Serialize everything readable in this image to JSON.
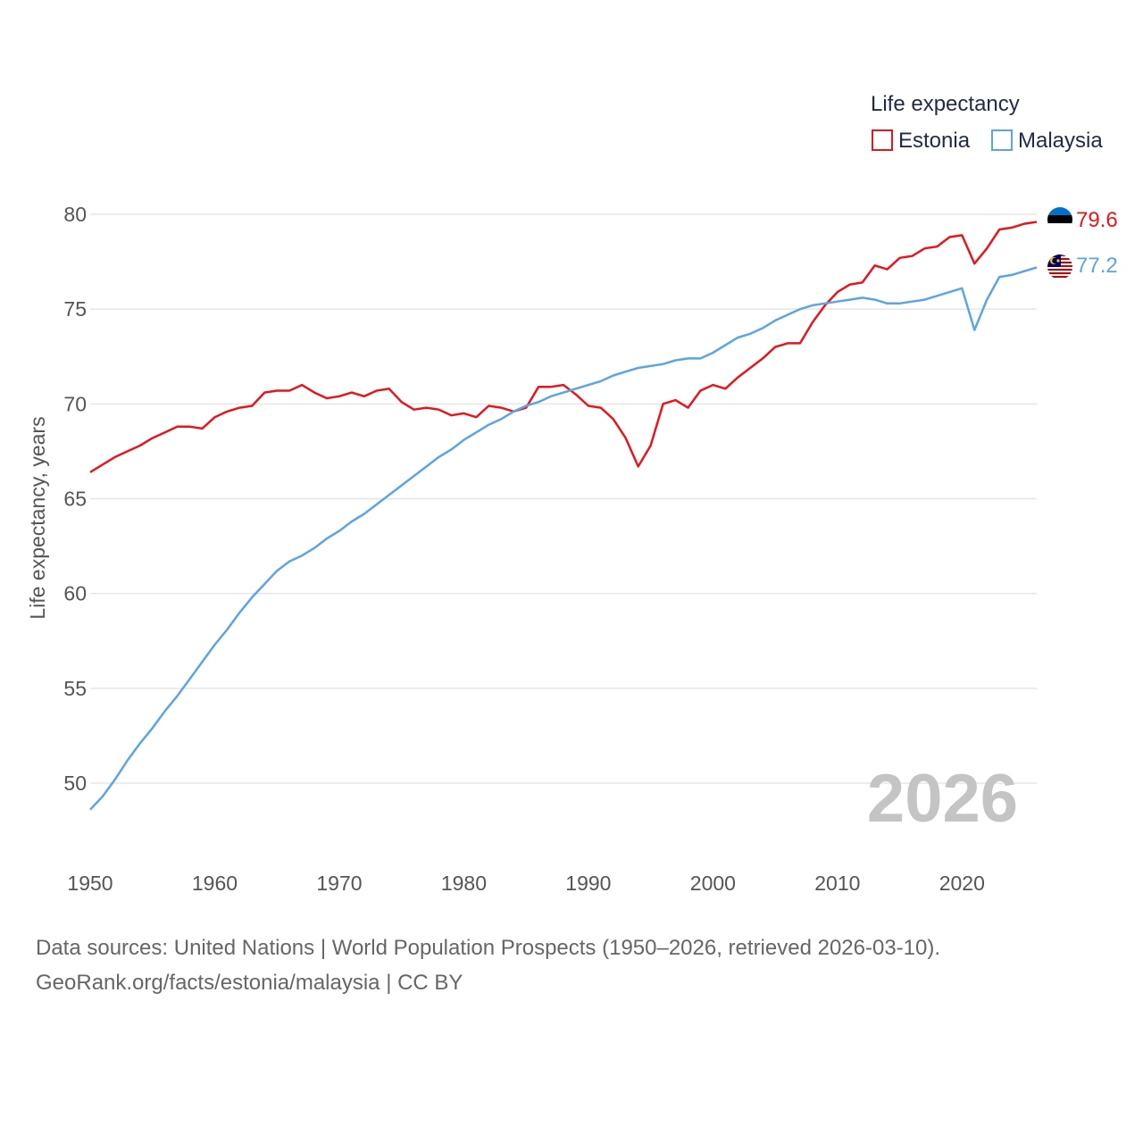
{
  "chart_data": {
    "type": "line",
    "legend_title": "Life expectancy",
    "ylabel": "Life expectancy, years",
    "xlabel": "",
    "xlim": [
      1950,
      2026
    ],
    "ylim": [
      47,
      81
    ],
    "x_ticks": [
      1950,
      1960,
      1970,
      1980,
      1990,
      2000,
      2010,
      2020
    ],
    "y_ticks": [
      50,
      55,
      60,
      65,
      70,
      75,
      80
    ],
    "year_label": "2026",
    "x": [
      1950,
      1951,
      1952,
      1953,
      1954,
      1955,
      1956,
      1957,
      1958,
      1959,
      1960,
      1961,
      1962,
      1963,
      1964,
      1965,
      1966,
      1967,
      1968,
      1969,
      1970,
      1971,
      1972,
      1973,
      1974,
      1975,
      1976,
      1977,
      1978,
      1979,
      1980,
      1981,
      1982,
      1983,
      1984,
      1985,
      1986,
      1987,
      1988,
      1989,
      1990,
      1991,
      1992,
      1993,
      1994,
      1995,
      1996,
      1997,
      1998,
      1999,
      2000,
      2001,
      2002,
      2003,
      2004,
      2005,
      2006,
      2007,
      2008,
      2009,
      2010,
      2011,
      2012,
      2013,
      2014,
      2015,
      2016,
      2017,
      2018,
      2019,
      2020,
      2021,
      2022,
      2023,
      2024,
      2025,
      2026
    ],
    "series": [
      {
        "name": "Estonia",
        "color": "#e8151b",
        "end_label": "79.6",
        "values": [
          66.4,
          66.8,
          67.2,
          67.5,
          67.8,
          68.2,
          68.5,
          68.8,
          68.8,
          68.7,
          69.3,
          69.6,
          69.8,
          69.9,
          70.6,
          70.7,
          70.7,
          71.0,
          70.6,
          70.3,
          70.4,
          70.6,
          70.4,
          70.7,
          70.8,
          70.1,
          69.7,
          69.8,
          69.7,
          69.4,
          69.5,
          69.3,
          69.9,
          69.8,
          69.6,
          69.8,
          70.9,
          70.9,
          71.0,
          70.5,
          69.9,
          69.8,
          69.2,
          68.2,
          66.7,
          67.8,
          70.0,
          70.2,
          69.8,
          70.7,
          71.0,
          70.8,
          71.4,
          71.9,
          72.4,
          73.0,
          73.2,
          73.2,
          74.3,
          75.2,
          75.9,
          76.3,
          76.4,
          77.3,
          77.1,
          77.7,
          77.8,
          78.2,
          78.3,
          78.8,
          78.9,
          77.4,
          78.2,
          79.2,
          79.3,
          79.5,
          79.6
        ]
      },
      {
        "name": "Malaysia",
        "color": "#5ba4e5",
        "end_label": "77.2",
        "values": [
          48.6,
          49.3,
          50.2,
          51.2,
          52.1,
          52.9,
          53.8,
          54.6,
          55.5,
          56.4,
          57.3,
          58.1,
          59.0,
          59.8,
          60.5,
          61.2,
          61.7,
          62.0,
          62.4,
          62.9,
          63.3,
          63.8,
          64.2,
          64.7,
          65.2,
          65.7,
          66.2,
          66.7,
          67.2,
          67.6,
          68.1,
          68.5,
          68.9,
          69.2,
          69.6,
          69.9,
          70.1,
          70.4,
          70.6,
          70.8,
          71.0,
          71.2,
          71.5,
          71.7,
          71.9,
          72.0,
          72.1,
          72.3,
          72.4,
          72.4,
          72.7,
          73.1,
          73.5,
          73.7,
          74.0,
          74.4,
          74.7,
          75.0,
          75.2,
          75.3,
          75.4,
          75.5,
          75.6,
          75.5,
          75.3,
          75.3,
          75.4,
          75.5,
          75.7,
          75.9,
          76.1,
          73.9,
          75.5,
          76.7,
          76.8,
          77.0,
          77.2
        ]
      }
    ]
  },
  "footer": {
    "line1": "Data sources: United Nations | World Population Prospects (1950–2026, retrieved 2026-03-10).",
    "line2": "GeoRank.org/facts/estonia/malaysia | CC BY"
  }
}
